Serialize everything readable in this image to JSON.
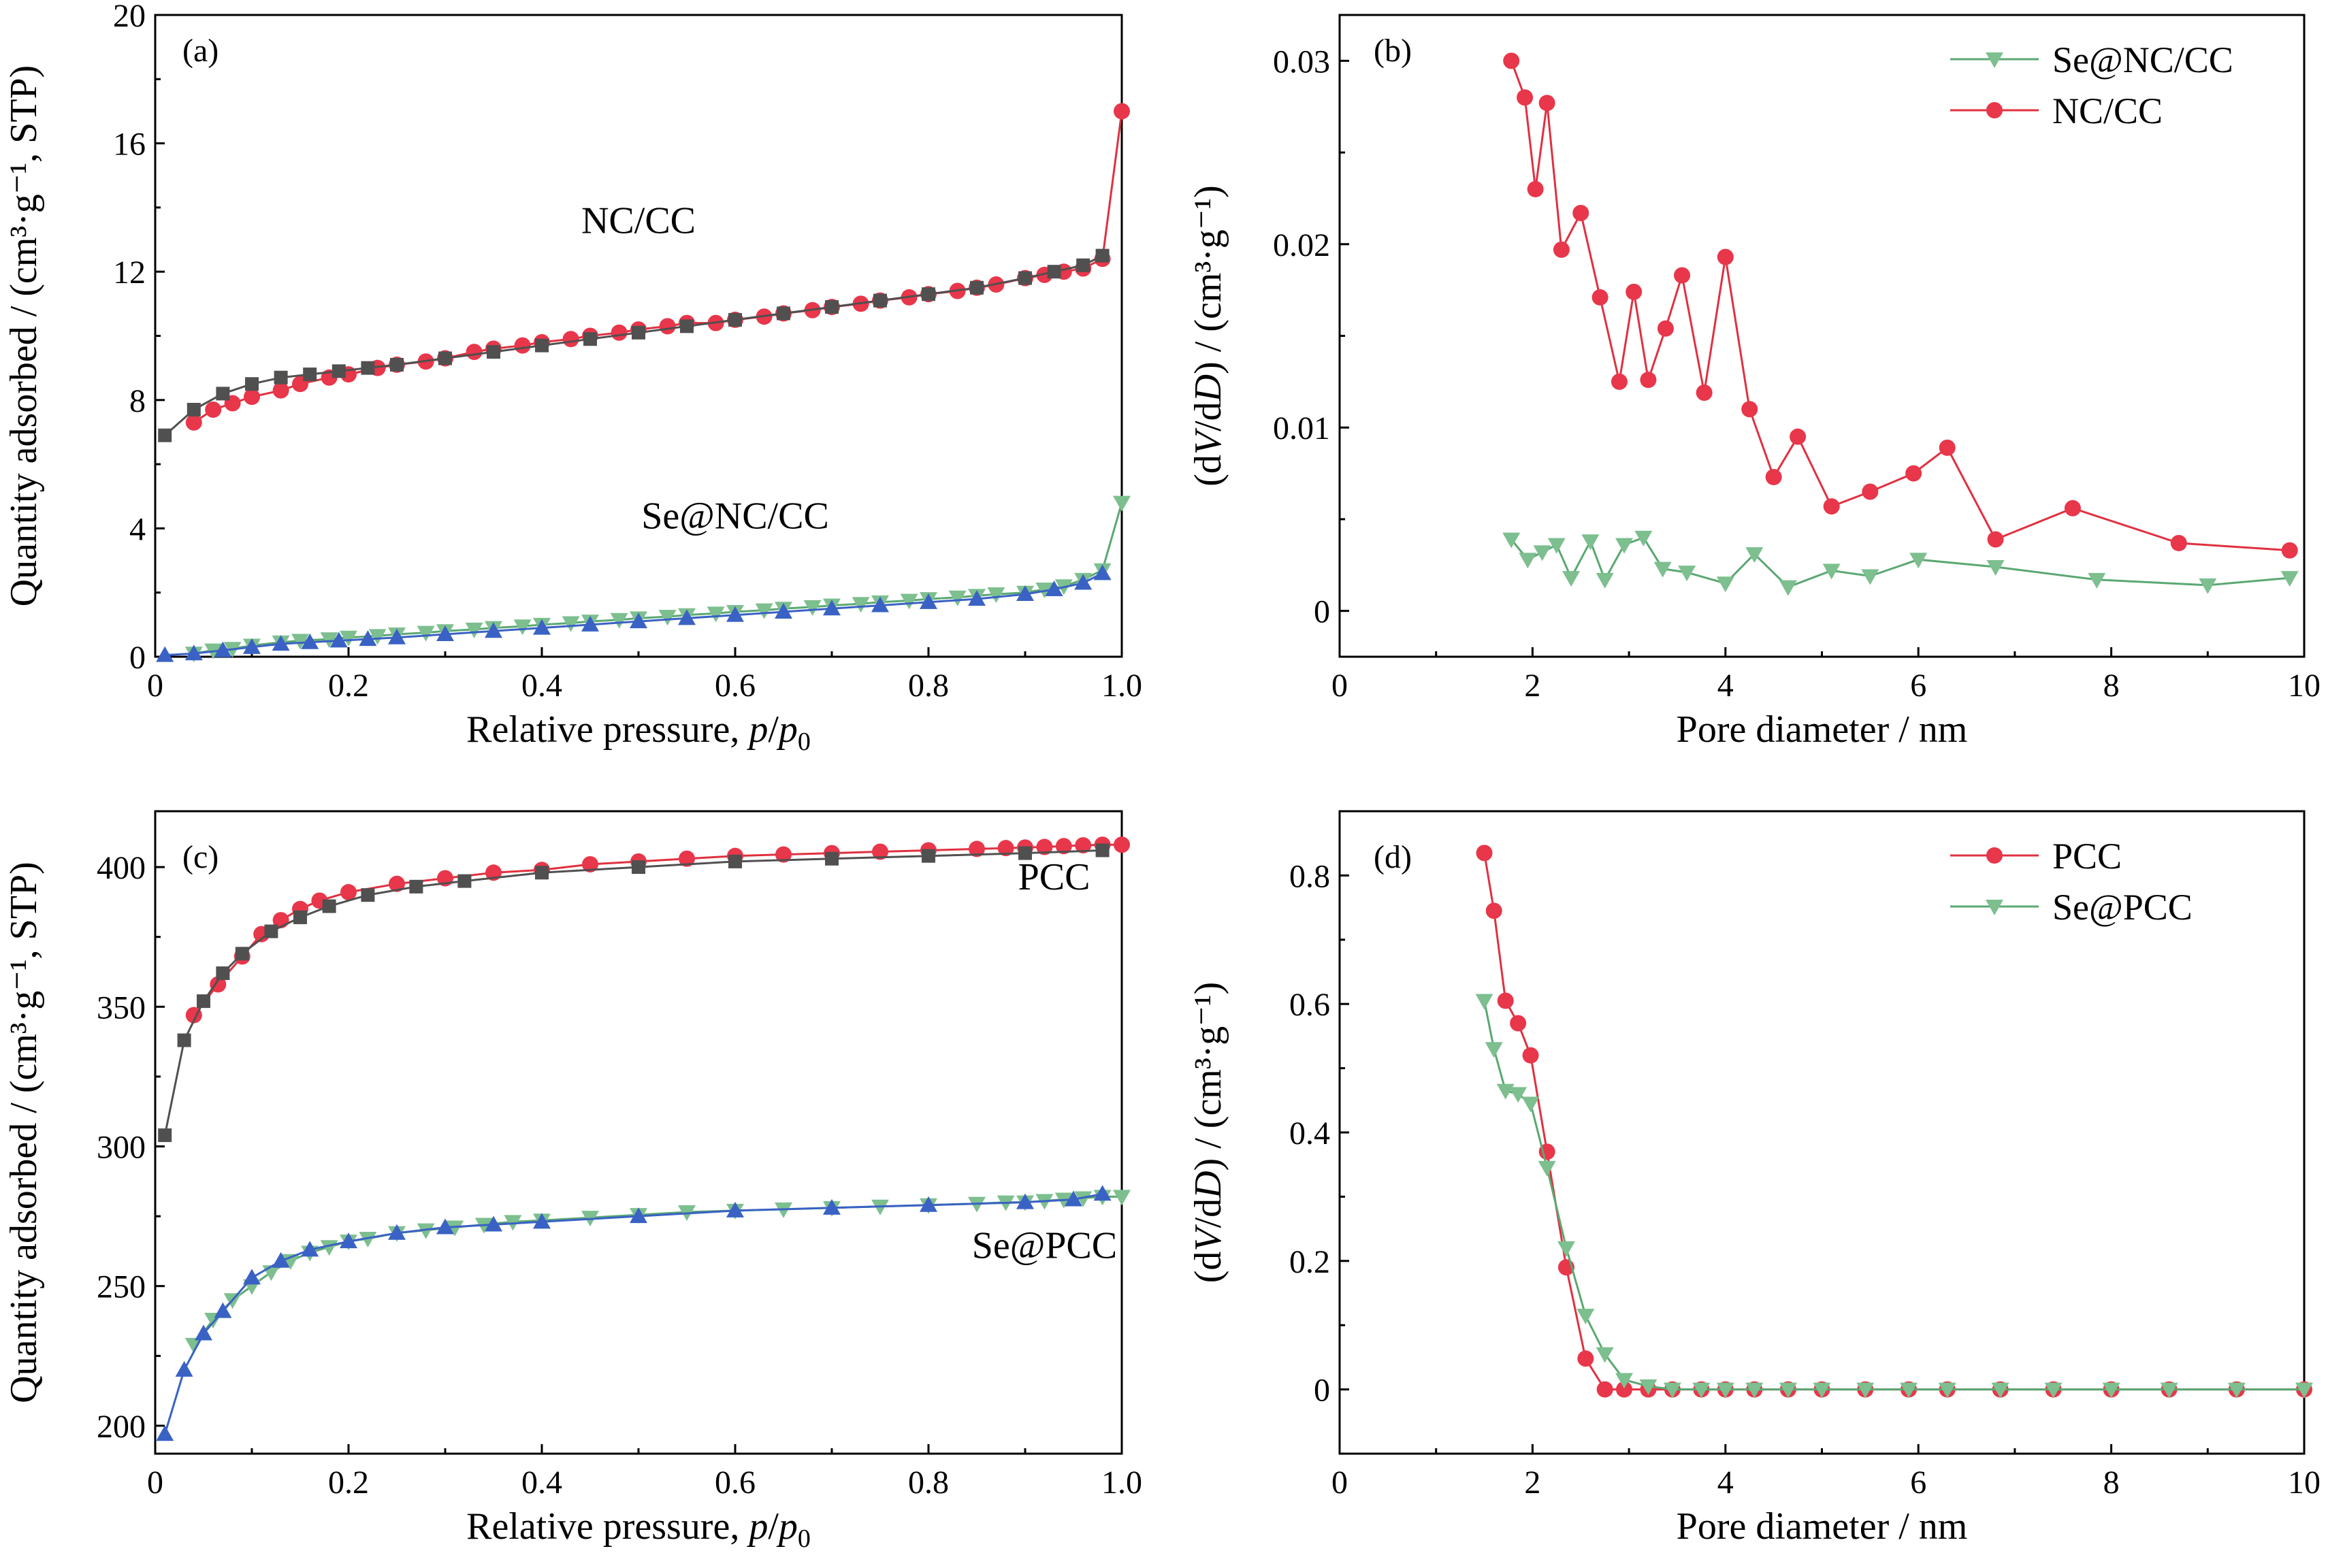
{
  "colors": {
    "red": "#e8364a",
    "red_line": "#e03040",
    "green": "#7dbf8f",
    "green_line": "#5aa872",
    "blue": "#3a62c4",
    "gray": "#505050"
  },
  "chart_data": [
    {
      "panel": "(a)",
      "type": "line",
      "xlabel": "Relative pressure, p/p0",
      "ylabel": "Quantity adsorbed / (cm³·g⁻¹, STP)",
      "xlim": [
        0,
        1.0
      ],
      "ylim": [
        0,
        20
      ],
      "xticks": [
        "0",
        "0.2",
        "0.4",
        "0.6",
        "0.8",
        "1.0"
      ],
      "yticks": [
        "0",
        "4",
        "8",
        "12",
        "16",
        "20"
      ],
      "annotations": [
        {
          "text": "NC/CC",
          "x": 0.5,
          "y": 13.2
        },
        {
          "text": "Se@NC/CC",
          "x": 0.6,
          "y": 4.0
        }
      ],
      "series": [
        {
          "marker": "circle",
          "color": "red",
          "x": [
            0.04,
            0.06,
            0.08,
            0.1,
            0.13,
            0.15,
            0.18,
            0.2,
            0.23,
            0.25,
            0.28,
            0.3,
            0.33,
            0.35,
            0.38,
            0.4,
            0.43,
            0.45,
            0.48,
            0.5,
            0.53,
            0.55,
            0.58,
            0.6,
            0.63,
            0.65,
            0.68,
            0.7,
            0.73,
            0.75,
            0.78,
            0.8,
            0.83,
            0.85,
            0.87,
            0.9,
            0.92,
            0.94,
            0.96,
            0.98,
            1.0
          ],
          "y": [
            7.3,
            7.7,
            7.9,
            8.1,
            8.3,
            8.5,
            8.7,
            8.8,
            9.0,
            9.1,
            9.2,
            9.3,
            9.5,
            9.6,
            9.7,
            9.8,
            9.9,
            10.0,
            10.1,
            10.2,
            10.3,
            10.4,
            10.4,
            10.5,
            10.6,
            10.7,
            10.8,
            10.9,
            11.0,
            11.1,
            11.2,
            11.3,
            11.4,
            11.5,
            11.6,
            11.8,
            11.9,
            12.0,
            12.1,
            12.4,
            17.0
          ]
        },
        {
          "marker": "square",
          "color": "gray",
          "x": [
            0.01,
            0.04,
            0.07,
            0.1,
            0.13,
            0.16,
            0.19,
            0.22,
            0.25,
            0.3,
            0.35,
            0.4,
            0.45,
            0.5,
            0.55,
            0.6,
            0.65,
            0.7,
            0.75,
            0.8,
            0.85,
            0.9,
            0.93,
            0.96,
            0.98
          ],
          "y": [
            6.9,
            7.7,
            8.2,
            8.5,
            8.7,
            8.8,
            8.9,
            9.0,
            9.1,
            9.3,
            9.5,
            9.7,
            9.9,
            10.1,
            10.3,
            10.5,
            10.7,
            10.9,
            11.1,
            11.3,
            11.5,
            11.8,
            12.0,
            12.2,
            12.5
          ]
        },
        {
          "marker": "triangle-down",
          "color": "green",
          "x": [
            0.04,
            0.06,
            0.08,
            0.1,
            0.13,
            0.15,
            0.18,
            0.2,
            0.23,
            0.25,
            0.28,
            0.3,
            0.33,
            0.35,
            0.38,
            0.4,
            0.43,
            0.45,
            0.48,
            0.5,
            0.53,
            0.55,
            0.58,
            0.6,
            0.63,
            0.65,
            0.68,
            0.7,
            0.73,
            0.75,
            0.78,
            0.8,
            0.83,
            0.85,
            0.87,
            0.9,
            0.92,
            0.94,
            0.96,
            0.98,
            1.0
          ],
          "y": [
            0.1,
            0.2,
            0.25,
            0.35,
            0.45,
            0.5,
            0.55,
            0.6,
            0.65,
            0.7,
            0.75,
            0.8,
            0.85,
            0.9,
            0.95,
            1.0,
            1.05,
            1.1,
            1.15,
            1.2,
            1.25,
            1.3,
            1.35,
            1.4,
            1.45,
            1.5,
            1.55,
            1.6,
            1.65,
            1.7,
            1.75,
            1.8,
            1.85,
            1.9,
            1.95,
            2.0,
            2.1,
            2.2,
            2.4,
            2.7,
            4.8
          ]
        },
        {
          "marker": "triangle-up",
          "color": "blue",
          "x": [
            0.01,
            0.04,
            0.07,
            0.1,
            0.13,
            0.16,
            0.19,
            0.22,
            0.25,
            0.3,
            0.35,
            0.4,
            0.45,
            0.5,
            0.55,
            0.6,
            0.65,
            0.7,
            0.75,
            0.8,
            0.85,
            0.9,
            0.93,
            0.96,
            0.98
          ],
          "y": [
            0.05,
            0.1,
            0.2,
            0.3,
            0.4,
            0.45,
            0.5,
            0.55,
            0.6,
            0.7,
            0.8,
            0.9,
            1.0,
            1.1,
            1.2,
            1.3,
            1.4,
            1.5,
            1.6,
            1.7,
            1.8,
            1.95,
            2.1,
            2.3,
            2.6
          ]
        }
      ]
    },
    {
      "panel": "(b)",
      "type": "line",
      "xlabel": "Pore diameter / nm",
      "ylabel": "(dV/dD) / (cm³·g⁻¹)",
      "xlim": [
        0,
        10
      ],
      "ylim": [
        -0.0025,
        0.0325
      ],
      "xticks": [
        "0",
        "2",
        "4",
        "6",
        "8",
        "10"
      ],
      "yticks": [
        "0",
        "0.01",
        "0.02",
        "0.03"
      ],
      "legend_position": "top-right",
      "series": [
        {
          "name": "Se@NC/CC",
          "marker": "triangle-down",
          "color": "green",
          "x": [
            1.78,
            1.95,
            2.1,
            2.25,
            2.4,
            2.6,
            2.75,
            2.95,
            3.15,
            3.35,
            3.6,
            4.0,
            4.3,
            4.65,
            5.1,
            5.5,
            6.0,
            6.8,
            7.85,
            9.0,
            9.85
          ],
          "y": [
            0.0039,
            0.0028,
            0.0032,
            0.0036,
            0.0018,
            0.0038,
            0.0017,
            0.0036,
            0.004,
            0.0023,
            0.0021,
            0.0015,
            0.0031,
            0.0013,
            0.0022,
            0.0019,
            0.0028,
            0.0024,
            0.0017,
            0.0014,
            0.0018
          ]
        },
        {
          "name": "NC/CC",
          "marker": "circle",
          "color": "red",
          "x": [
            1.78,
            1.92,
            2.03,
            2.15,
            2.3,
            2.5,
            2.7,
            2.9,
            3.05,
            3.2,
            3.38,
            3.55,
            3.78,
            4.0,
            4.25,
            4.5,
            4.75,
            5.1,
            5.5,
            5.95,
            6.3,
            6.8,
            7.6,
            8.7,
            9.85
          ],
          "y": [
            0.03,
            0.028,
            0.023,
            0.0277,
            0.0197,
            0.0217,
            0.0171,
            0.0125,
            0.0174,
            0.0126,
            0.0154,
            0.0183,
            0.0119,
            0.0193,
            0.011,
            0.0073,
            0.0095,
            0.0057,
            0.0065,
            0.0075,
            0.0089,
            0.0039,
            0.0056,
            0.0037,
            0.0033
          ]
        }
      ]
    },
    {
      "panel": "(c)",
      "type": "line",
      "xlabel": "Relative pressure, p/p0",
      "ylabel": "Quantity adsorbed / (cm³·g⁻¹, STP)",
      "xlim": [
        0,
        1.0
      ],
      "ylim": [
        190,
        420
      ],
      "xticks": [
        "0",
        "0.2",
        "0.4",
        "0.6",
        "0.8",
        "1.0"
      ],
      "yticks": [
        "200",
        "250",
        "300",
        "350",
        "400"
      ],
      "annotations": [
        {
          "text": "PCC",
          "x": 0.93,
          "y": 392
        },
        {
          "text": "Se@PCC",
          "x": 0.92,
          "y": 260
        }
      ],
      "series": [
        {
          "marker": "circle",
          "color": "red",
          "x": [
            0.04,
            0.065,
            0.09,
            0.11,
            0.13,
            0.15,
            0.17,
            0.2,
            0.25,
            0.3,
            0.35,
            0.4,
            0.45,
            0.5,
            0.55,
            0.6,
            0.65,
            0.7,
            0.75,
            0.8,
            0.85,
            0.88,
            0.9,
            0.92,
            0.94,
            0.96,
            0.98,
            1.0
          ],
          "y": [
            347,
            358,
            368,
            376,
            381,
            385,
            388,
            391,
            394,
            396,
            398,
            399,
            401,
            402,
            403,
            404,
            404.5,
            405,
            405.5,
            406,
            406.5,
            406.8,
            407,
            407.2,
            407.5,
            407.8,
            408,
            408
          ]
        },
        {
          "marker": "square",
          "color": "gray",
          "x": [
            0.01,
            0.03,
            0.05,
            0.07,
            0.09,
            0.12,
            0.15,
            0.18,
            0.22,
            0.27,
            0.32,
            0.4,
            0.5,
            0.6,
            0.7,
            0.8,
            0.9,
            0.98
          ],
          "y": [
            304,
            338,
            352,
            362,
            369,
            377,
            382,
            386,
            390,
            393,
            395,
            398,
            400,
            402,
            403,
            404,
            405,
            406
          ]
        },
        {
          "marker": "triangle-down",
          "color": "green",
          "x": [
            0.04,
            0.06,
            0.08,
            0.1,
            0.12,
            0.14,
            0.16,
            0.18,
            0.2,
            0.22,
            0.25,
            0.28,
            0.31,
            0.34,
            0.37,
            0.4,
            0.45,
            0.5,
            0.55,
            0.6,
            0.65,
            0.7,
            0.75,
            0.8,
            0.85,
            0.88,
            0.9,
            0.92,
            0.94,
            0.96,
            0.98,
            1.0
          ],
          "y": [
            229,
            238,
            245,
            250,
            255,
            259,
            262,
            264,
            266,
            267,
            269,
            270,
            271,
            272,
            273,
            273.5,
            274.5,
            275.5,
            276.5,
            277,
            277.5,
            278,
            278.5,
            279,
            279.5,
            280,
            280,
            280.5,
            281,
            281.5,
            282,
            282
          ]
        },
        {
          "marker": "triangle-up",
          "color": "blue",
          "x": [
            0.01,
            0.03,
            0.05,
            0.07,
            0.1,
            0.13,
            0.16,
            0.2,
            0.25,
            0.3,
            0.35,
            0.4,
            0.5,
            0.6,
            0.7,
            0.8,
            0.9,
            0.95,
            0.98
          ],
          "y": [
            197,
            220,
            233,
            241,
            253,
            259,
            263,
            266,
            269,
            271,
            272,
            273,
            275,
            277,
            278,
            279,
            280,
            281,
            283
          ]
        }
      ]
    },
    {
      "panel": "(d)",
      "type": "line",
      "xlabel": "Pore diameter / nm",
      "ylabel": "(dV/dD) / (cm³·g⁻¹)",
      "xlim": [
        0,
        10
      ],
      "ylim": [
        -0.1,
        0.9
      ],
      "xticks": [
        "0",
        "2",
        "4",
        "6",
        "8",
        "10"
      ],
      "yticks": [
        "0",
        "0.2",
        "0.4",
        "0.6",
        "0.8"
      ],
      "legend_position": "top-right",
      "series": [
        {
          "name": "PCC",
          "marker": "circle",
          "color": "red",
          "x": [
            1.5,
            1.6,
            1.72,
            1.85,
            1.98,
            2.15,
            2.35,
            2.55,
            2.75,
            2.95,
            3.2,
            3.45,
            3.75,
            4.0,
            4.3,
            4.65,
            5.0,
            5.45,
            5.9,
            6.3,
            6.85,
            7.4,
            8.0,
            8.6,
            9.3,
            10.0
          ],
          "y": [
            0.835,
            0.745,
            0.605,
            0.57,
            0.52,
            0.37,
            0.19,
            0.048,
            0.0,
            0.0,
            0.0,
            0.0,
            0.0,
            0.0,
            0.0,
            0.0,
            0.0,
            0.0,
            0.0,
            0.0,
            0.0,
            0.0,
            0.0,
            0.0,
            0.0,
            0.0
          ]
        },
        {
          "name": "Se@PCC",
          "marker": "triangle-down",
          "color": "green",
          "x": [
            1.5,
            1.6,
            1.72,
            1.85,
            1.98,
            2.15,
            2.35,
            2.55,
            2.75,
            2.95,
            3.2,
            3.45,
            3.75,
            4.0,
            4.3,
            4.65,
            5.0,
            5.45,
            5.9,
            6.3,
            6.85,
            7.4,
            8.0,
            8.6,
            9.3,
            10.0
          ],
          "y": [
            0.605,
            0.53,
            0.465,
            0.46,
            0.445,
            0.345,
            0.22,
            0.115,
            0.055,
            0.015,
            0.005,
            0.0,
            0.0,
            0.0,
            0.0,
            0.0,
            0.0,
            0.0,
            0.0,
            0.0,
            0.0,
            0.0,
            0.0,
            0.0,
            0.0,
            0.0
          ]
        }
      ]
    }
  ]
}
